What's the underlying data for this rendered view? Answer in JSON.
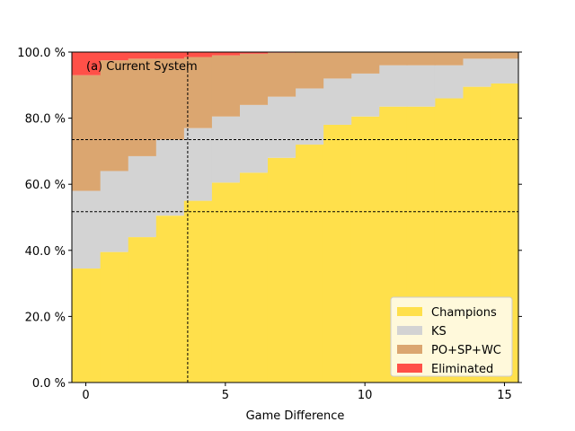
{
  "chart_data": {
    "type": "area",
    "subtype": "stacked-step",
    "title": "",
    "annotation": "(a) Current System",
    "xlabel": "Game Difference",
    "ylabel": "",
    "xlim": [
      -0.5,
      15.5
    ],
    "ylim": [
      0,
      100
    ],
    "x": [
      0,
      1,
      2,
      3,
      4,
      5,
      6,
      7,
      8,
      9,
      10,
      11,
      12,
      13,
      14,
      15
    ],
    "x_ticks": [
      0,
      5,
      10,
      15
    ],
    "x_tick_labels": [
      "0",
      "5",
      "10",
      "15"
    ],
    "y_ticks": [
      0,
      20,
      40,
      60,
      80,
      100
    ],
    "y_tick_labels": [
      "0.0 %",
      "20.0 %",
      "40.0 %",
      "60.0 %",
      "80.0 %",
      "100.0 %"
    ],
    "series": [
      {
        "name": "Champions",
        "color": "#FFE04B",
        "values": [
          34.5,
          39.5,
          44.0,
          50.5,
          55.0,
          60.5,
          63.5,
          68.0,
          72.0,
          78.0,
          80.5,
          83.5,
          83.5,
          86.0,
          89.5,
          90.5
        ]
      },
      {
        "name": "KS",
        "color": "#D3D3D3",
        "values": [
          23.5,
          24.5,
          24.5,
          23.0,
          22.0,
          20.0,
          20.5,
          18.5,
          17.0,
          14.0,
          13.0,
          12.5,
          12.5,
          10.0,
          8.5,
          7.5
        ]
      },
      {
        "name": "PO+SP+WC",
        "color": "#DBA670",
        "values": [
          35.0,
          33.5,
          29.5,
          24.5,
          21.5,
          18.5,
          15.5,
          13.3,
          11.0,
          8.0,
          6.5,
          4.0,
          4.0,
          4.0,
          2.0,
          2.0
        ]
      },
      {
        "name": "Eliminated",
        "color": "#FF5048",
        "values": [
          7.0,
          2.5,
          2.0,
          2.0,
          1.5,
          1.0,
          0.5,
          0.2,
          0.0,
          0.0,
          0.0,
          0.0,
          0.0,
          0.0,
          0.0,
          0.0
        ]
      }
    ],
    "reference_lines": {
      "vertical_x": [
        3.65
      ],
      "horizontal_y": [
        51.7,
        73.5
      ]
    },
    "legend_position": "lower-right"
  }
}
